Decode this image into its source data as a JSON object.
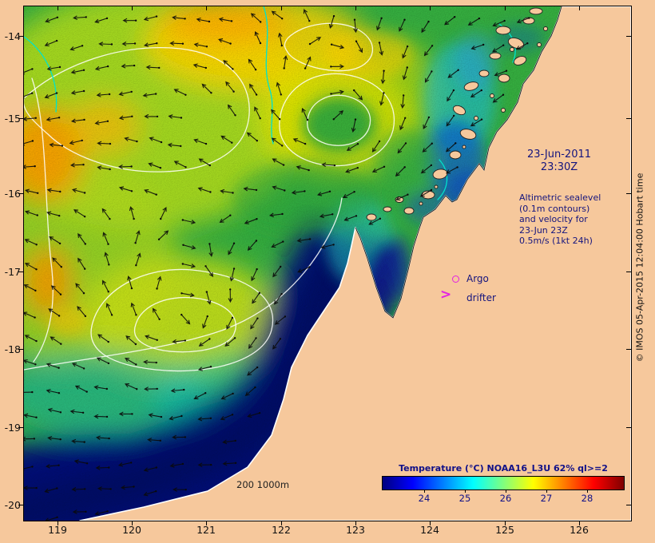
{
  "map": {
    "date_line1": "23-Jun-2011",
    "date_line2": "23:30Z",
    "legend_info": "Altimetric sealevel\n(0.1m contours)\nand velocity for\n23-Jun 23Z\n0.5m/s (1kt 24h)",
    "argo_label": "Argo",
    "drifter_label": "drifter",
    "drifter_symbol": ">",
    "isobath_label": "200 1000m"
  },
  "colorbar": {
    "title": "Temperature (°C) NOAA16_L3U 62% ql>=2",
    "tick_labels": [
      "24",
      "25",
      "26",
      "27",
      "28"
    ],
    "gradient": [
      "#00007f",
      "#0000ff",
      "#007fff",
      "#00ffff",
      "#7fff7f",
      "#ffff00",
      "#ff7f00",
      "#ff0000",
      "#7f0000"
    ]
  },
  "axes": {
    "x_ticks": [
      "119",
      "120",
      "121",
      "122",
      "123",
      "124",
      "125",
      "126"
    ],
    "y_ticks": [
      "-14",
      "-15",
      "-16",
      "-17",
      "-18",
      "-19",
      "-20"
    ]
  },
  "credit": "© IMOS 05-Apr-2015 12:04:00 Hobart time",
  "colors": {
    "land": "#f6c89c",
    "ocean_base": "#35ad3f",
    "marker_magenta": "#e321e3",
    "text_navy": "#14147e",
    "bathy_cyan": "#00e2cc"
  }
}
